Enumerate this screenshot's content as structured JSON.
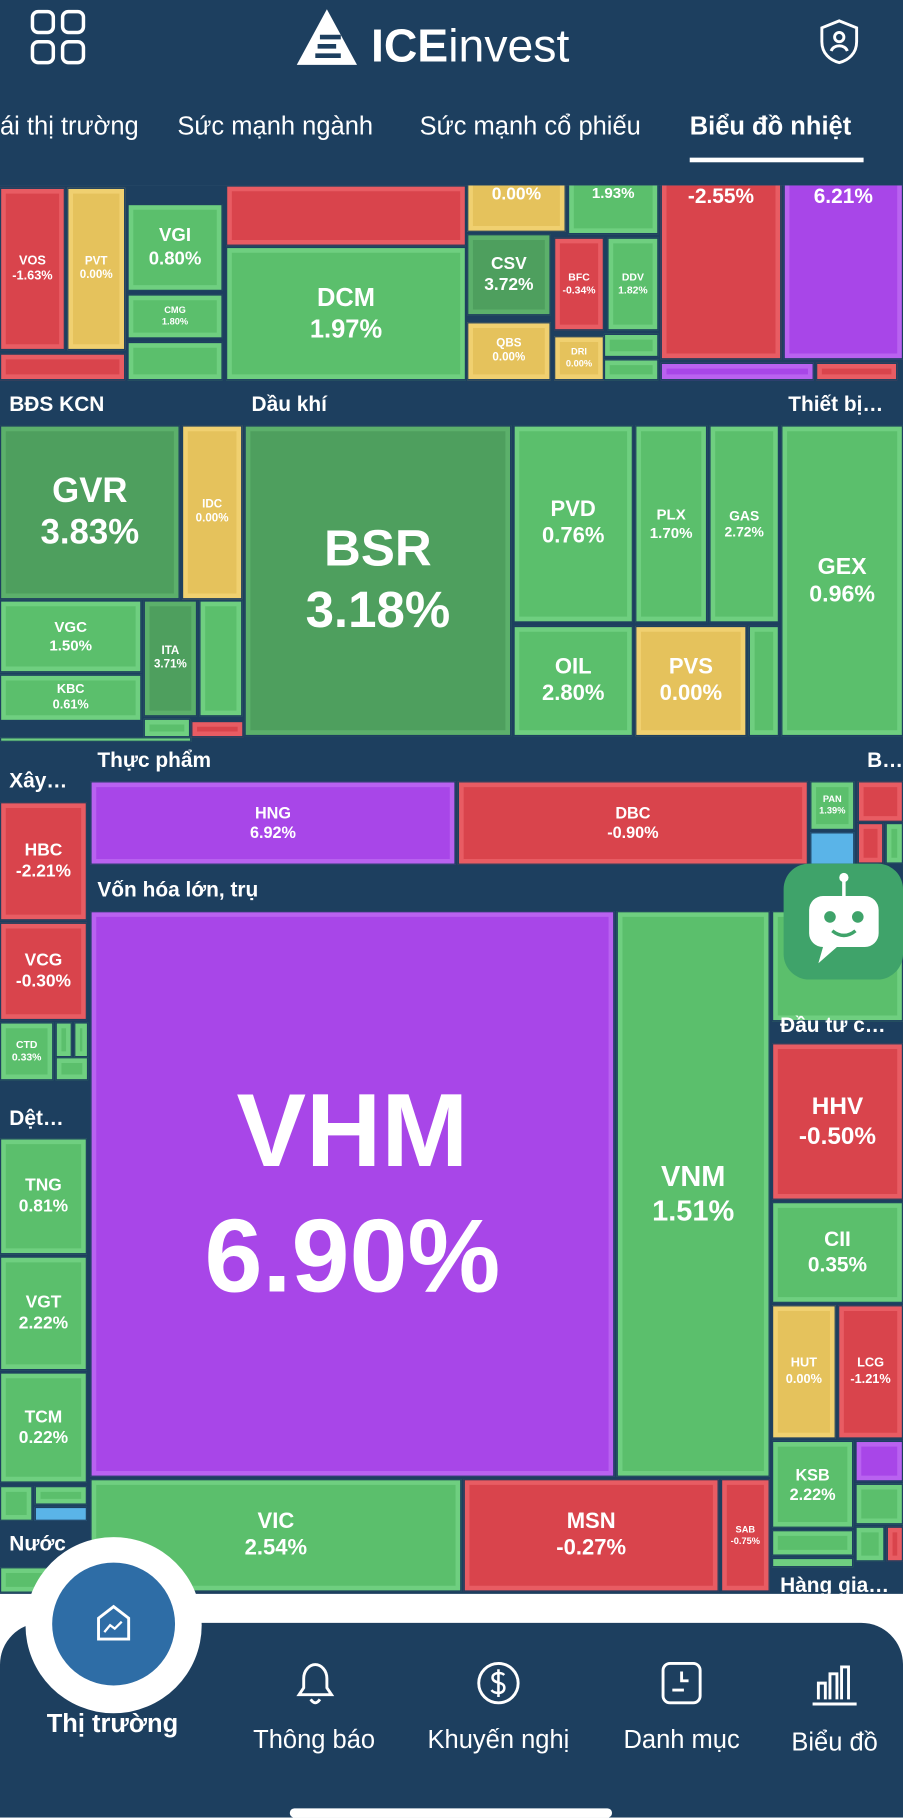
{
  "header": {
    "logo_bold": "ICE",
    "logo_light": "invest",
    "tabs": [
      "ái thị trường",
      "Sức mạnh ngành",
      "Sức mạnh cổ phiếu",
      "Biểu đồ nhiệt"
    ]
  },
  "sectors": [
    "BĐS KCN",
    "Dầu khí",
    "Thiết bị…",
    "Xây…",
    "Thực phẩm",
    "B…",
    "Vốn hóa lớn, trụ",
    "Dệt…",
    "Nước",
    "Đầu tư c…",
    "Hàng gia…"
  ],
  "partial_values": [
    "0.00%",
    "1.93%",
    "-2.55%",
    "6.21%"
  ],
  "tiles": [
    {
      "ticker": "VOS",
      "change": "-1.63%"
    },
    {
      "ticker": "PVT",
      "change": "0.00%"
    },
    {
      "ticker": "VGI",
      "change": "0.80%"
    },
    {
      "ticker": "CMG",
      "change": "1.80%"
    },
    {
      "ticker": "DCM",
      "change": "1.97%"
    },
    {
      "ticker": "CSV",
      "change": "3.72%"
    },
    {
      "ticker": "BFC",
      "change": "-0.34%"
    },
    {
      "ticker": "DDV",
      "change": "1.82%"
    },
    {
      "ticker": "QBS",
      "change": "0.00%"
    },
    {
      "ticker": "DRI",
      "change": "0.00%"
    },
    {
      "ticker": "GVR",
      "change": "3.83%"
    },
    {
      "ticker": "IDC",
      "change": "0.00%"
    },
    {
      "ticker": "VGC",
      "change": "1.50%"
    },
    {
      "ticker": "KBC",
      "change": "0.61%"
    },
    {
      "ticker": "ITA",
      "change": "3.71%"
    },
    {
      "ticker": "BSR",
      "change": "3.18%"
    },
    {
      "ticker": "PVD",
      "change": "0.76%"
    },
    {
      "ticker": "PLX",
      "change": "1.70%"
    },
    {
      "ticker": "GAS",
      "change": "2.72%"
    },
    {
      "ticker": "OIL",
      "change": "2.80%"
    },
    {
      "ticker": "PVS",
      "change": "0.00%"
    },
    {
      "ticker": "GEX",
      "change": "0.96%"
    },
    {
      "ticker": "HNG",
      "change": "6.92%"
    },
    {
      "ticker": "DBC",
      "change": "-0.90%"
    },
    {
      "ticker": "PAN",
      "change": "1.39%"
    },
    {
      "ticker": "VHM",
      "change": "6.90%"
    },
    {
      "ticker": "VNM",
      "change": "1.51%"
    },
    {
      "ticker": "VIC",
      "change": "2.54%"
    },
    {
      "ticker": "MSN",
      "change": "-0.27%"
    },
    {
      "ticker": "SAB",
      "change": "-0.75%"
    },
    {
      "ticker": "HBC",
      "change": "-2.21%"
    },
    {
      "ticker": "VCG",
      "change": "-0.30%"
    },
    {
      "ticker": "CTD",
      "change": "0.33%"
    },
    {
      "ticker": "TNG",
      "change": "0.81%"
    },
    {
      "ticker": "VGT",
      "change": "2.22%"
    },
    {
      "ticker": "TCM",
      "change": "0.22%"
    },
    {
      "ticker": "HHV",
      "change": "-0.50%"
    },
    {
      "ticker": "CII",
      "change": "0.35%"
    },
    {
      "ticker": "HUT",
      "change": "0.00%"
    },
    {
      "ticker": "LCG",
      "change": "-1.21%"
    },
    {
      "ticker": "KSB",
      "change": "2.22%"
    }
  ],
  "bottom_nav": [
    "Thị trường",
    "Thông báo",
    "Khuyến nghị",
    "Danh mục",
    "Biểu đồ"
  ]
}
